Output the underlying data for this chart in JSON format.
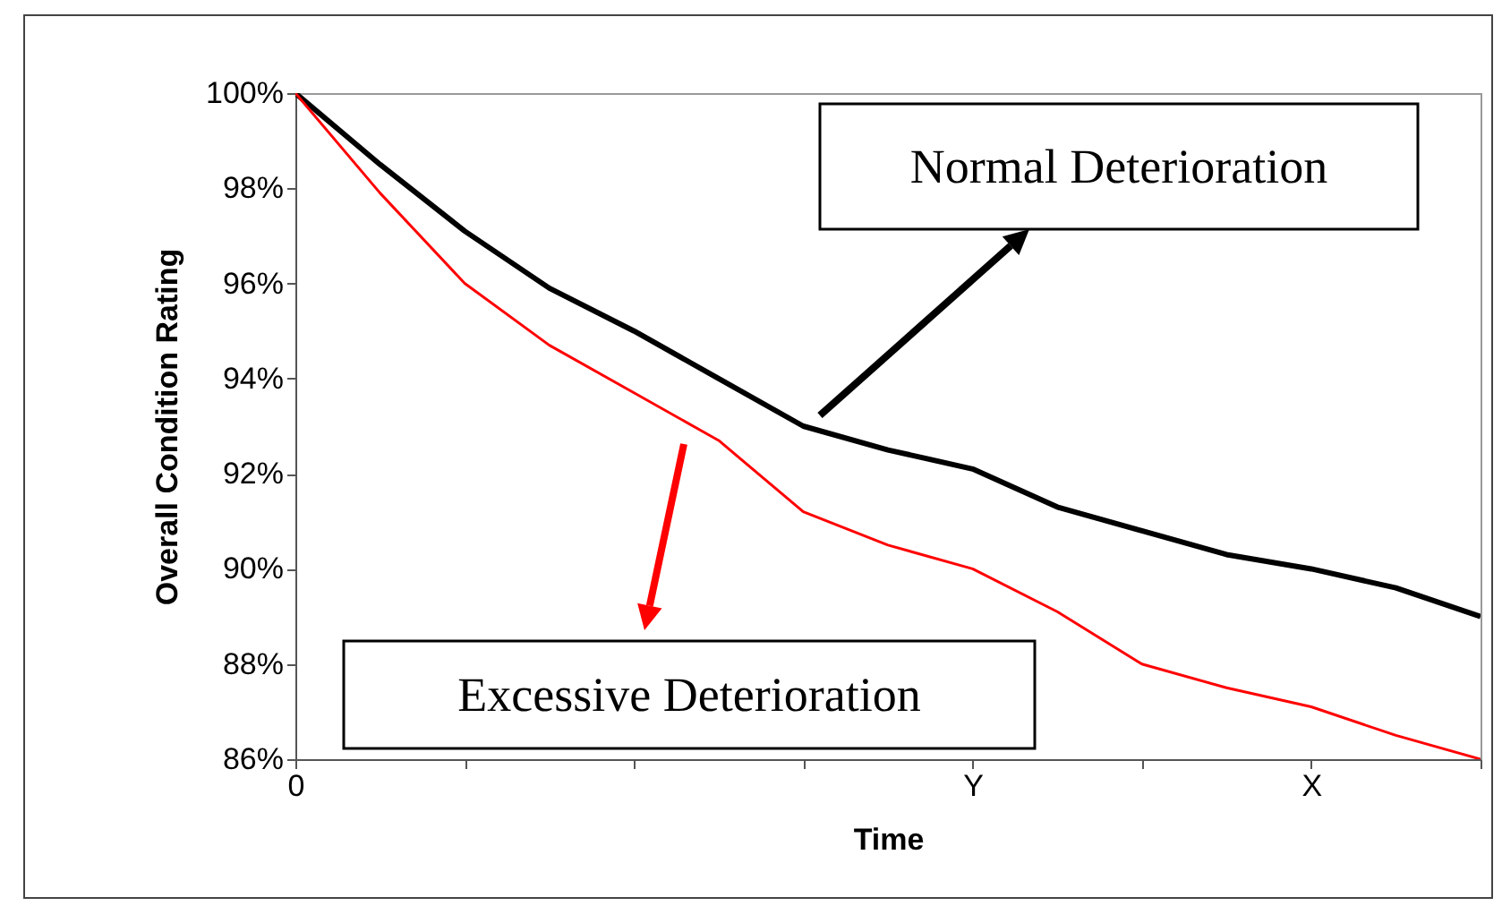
{
  "chart_data": {
    "type": "line",
    "xlabel": "Time",
    "ylabel": "Overall Condition Rating",
    "categories": [
      "0",
      null,
      null,
      null,
      null,
      null,
      null,
      null,
      "Y",
      null,
      null,
      null,
      "X",
      null,
      null
    ],
    "ylim": [
      86,
      100
    ],
    "yticks": [
      {
        "value": 86,
        "label": "86%"
      },
      {
        "value": 88,
        "label": "88%"
      },
      {
        "value": 90,
        "label": "90%"
      },
      {
        "value": 92,
        "label": "92%"
      },
      {
        "value": 94,
        "label": "94%"
      },
      {
        "value": 96,
        "label": "96%"
      },
      {
        "value": 98,
        "label": "98%"
      },
      {
        "value": 100,
        "label": "100%"
      }
    ],
    "grid": false,
    "series": [
      {
        "color": "#000000",
        "values": [
          100,
          98.5,
          97.1,
          95.9,
          95.0,
          94.0,
          93.0,
          92.5,
          92.1,
          91.3,
          90.8,
          90.3,
          90.0,
          89.6,
          89.0
        ]
      },
      {
        "color": "#ff0000",
        "values": [
          100,
          97.9,
          96.0,
          94.7,
          93.7,
          92.7,
          91.2,
          90.5,
          90.0,
          89.1,
          88.0,
          87.5,
          87.1,
          86.5,
          86.0
        ]
      }
    ],
    "annotations": [
      "Normal Deterioration",
      "Excessive Deterioration"
    ]
  }
}
